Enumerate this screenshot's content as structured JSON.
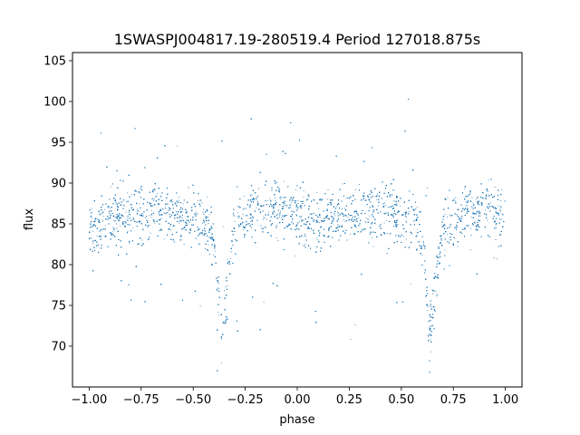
{
  "chart_data": {
    "type": "scatter",
    "title": "1SWASPJ004817.19-280519.4 Period 127018.875s",
    "xlabel": "phase",
    "ylabel": "flux",
    "xlim": [
      -1.08,
      1.08
    ],
    "ylim": [
      65,
      106
    ],
    "xticks": [
      -1.0,
      -0.75,
      -0.5,
      -0.25,
      0.0,
      0.25,
      0.5,
      0.75,
      1.0
    ],
    "xtick_labels": [
      "−1.00",
      "−0.75",
      "−0.50",
      "−0.25",
      "0.00",
      "0.25",
      "0.50",
      "0.75",
      "1.00"
    ],
    "yticks": [
      70,
      75,
      80,
      85,
      90,
      95,
      100,
      105
    ],
    "ytick_labels": [
      "70",
      "75",
      "80",
      "85",
      "90",
      "95",
      "100",
      "105"
    ],
    "grid": false,
    "point_color": "#1f77b4",
    "series": [
      {
        "trend_phase": [
          -1.0,
          -0.9,
          -0.8,
          -0.7,
          -0.6,
          -0.5,
          -0.45,
          -0.42,
          -0.4,
          -0.38,
          -0.37,
          -0.36,
          -0.34,
          -0.32,
          -0.3,
          -0.2,
          -0.1,
          0.0,
          0.1,
          0.2,
          0.3,
          0.4,
          0.5,
          0.55,
          0.58,
          0.6,
          0.62,
          0.63,
          0.64,
          0.66,
          0.68,
          0.7,
          0.8,
          0.9,
          1.0
        ],
        "trend_flux": [
          85.2,
          85.8,
          86.3,
          86.5,
          86.3,
          86.0,
          85.4,
          84.5,
          82.5,
          77.0,
          73.0,
          72.5,
          76.0,
          81.5,
          84.5,
          86.5,
          86.8,
          86.0,
          85.2,
          85.8,
          86.4,
          86.5,
          86.2,
          85.6,
          84.6,
          82.5,
          77.0,
          73.0,
          72.5,
          76.5,
          81.5,
          84.5,
          86.4,
          86.6,
          85.6
        ]
      }
    ]
  }
}
